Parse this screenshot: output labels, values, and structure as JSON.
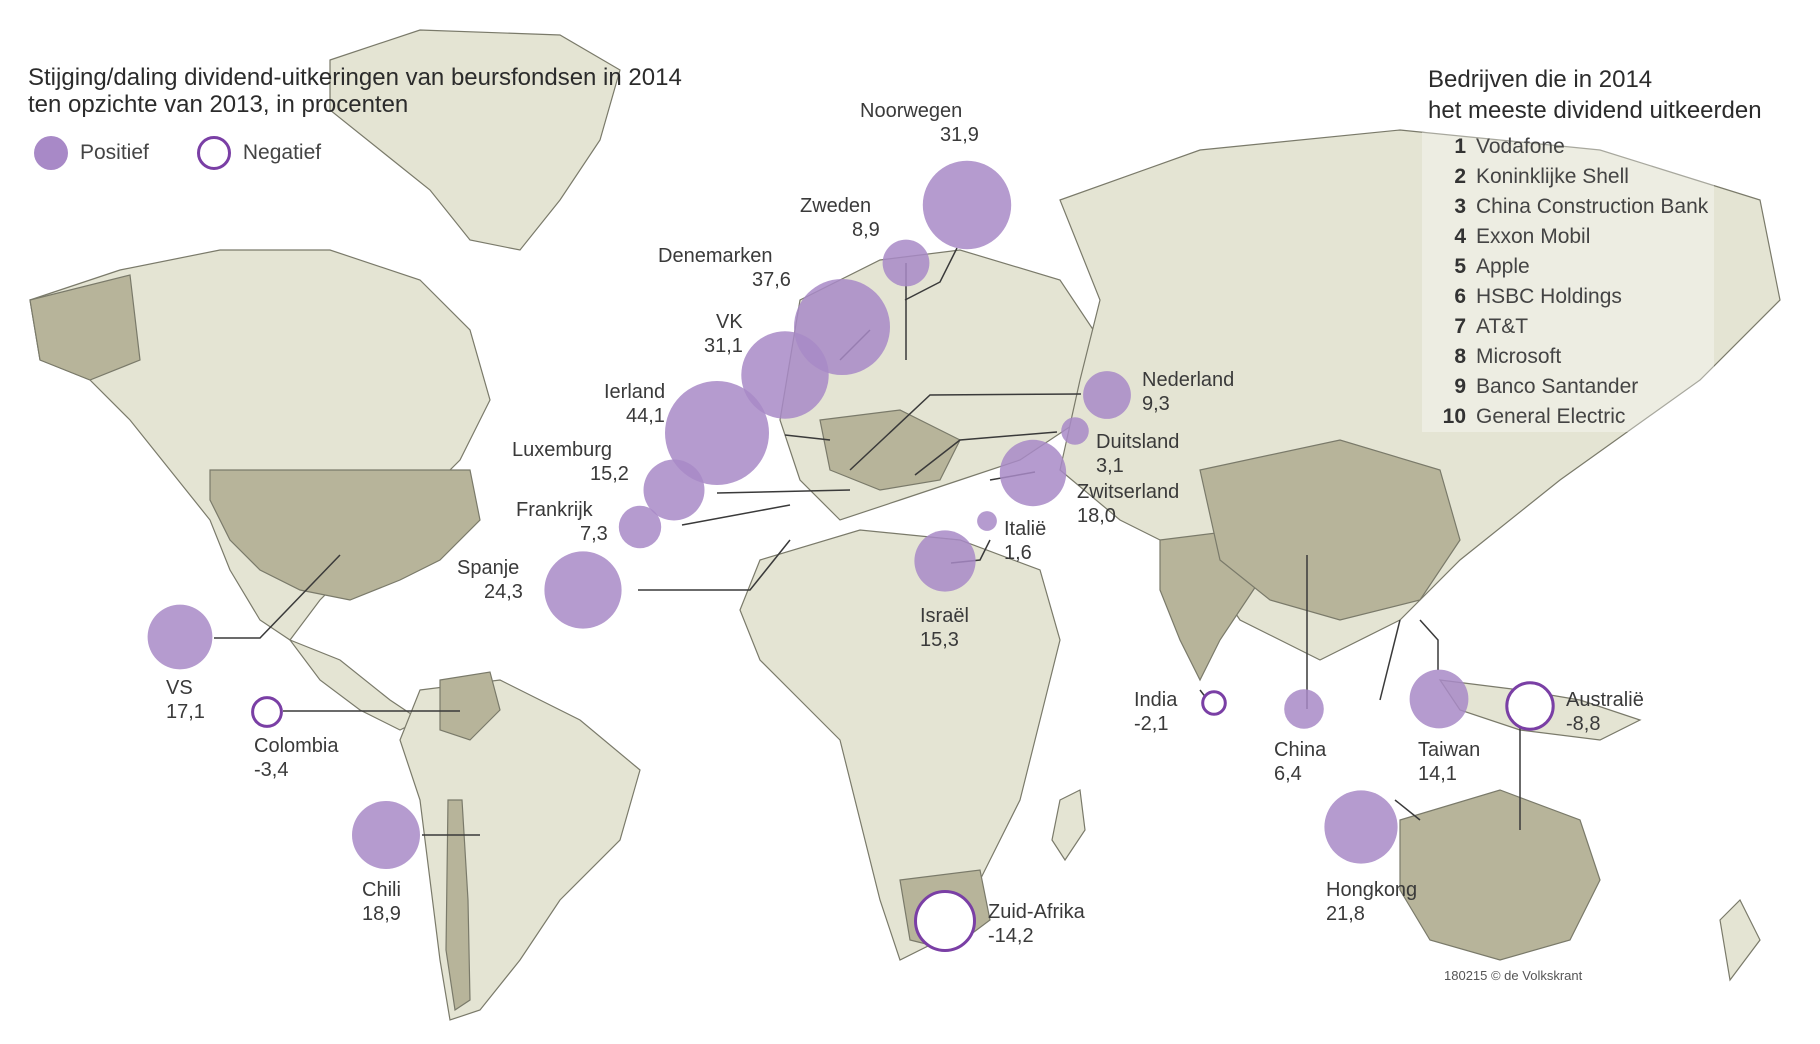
{
  "title_line1": "Stijging/daling dividend-uitkeringen van beursfondsen in 2014",
  "title_line2": "ten opzichte van 2013, in procenten",
  "legend": {
    "positive": "Positief",
    "negative": "Negatief"
  },
  "companies_title_line1": "Bedrijven die in 2014",
  "companies_title_line2": "het meeste dividend uitkeerden",
  "companies": [
    {
      "rank": "1",
      "name": "Vodafone"
    },
    {
      "rank": "2",
      "name": "Koninklijke Shell"
    },
    {
      "rank": "3",
      "name": "China Construction Bank"
    },
    {
      "rank": "4",
      "name": "Exxon Mobil"
    },
    {
      "rank": "5",
      "name": "Apple"
    },
    {
      "rank": "6",
      "name": "HSBC Holdings"
    },
    {
      "rank": "7",
      "name": "AT&T"
    },
    {
      "rank": "8",
      "name": "Microsoft"
    },
    {
      "rank": "9",
      "name": "Banco Santander"
    },
    {
      "rank": "10",
      "name": "General Electric"
    }
  ],
  "credit": "180215 © de Volkskrant",
  "colors": {
    "positive": "#a889c7",
    "negative_stroke": "#7a3fa5",
    "land": "#e4e4d3",
    "land_highlight": "#b7b49a"
  },
  "countries": [
    {
      "name": "Noorwegen",
      "value": "31,9",
      "num": 31.9
    },
    {
      "name": "Zweden",
      "value": "8,9",
      "num": 8.9
    },
    {
      "name": "Denemarken",
      "value": "37,6",
      "num": 37.6
    },
    {
      "name": "VK",
      "value": "31,1",
      "num": 31.1
    },
    {
      "name": "Ierland",
      "value": "44,1",
      "num": 44.1
    },
    {
      "name": "Luxemburg",
      "value": "15,2",
      "num": 15.2
    },
    {
      "name": "Frankrijk",
      "value": "7,3",
      "num": 7.3
    },
    {
      "name": "Spanje",
      "value": "24,3",
      "num": 24.3
    },
    {
      "name": "Nederland",
      "value": "9,3",
      "num": 9.3
    },
    {
      "name": "Duitsland",
      "value": "3,1",
      "num": 3.1
    },
    {
      "name": "Zwitserland",
      "value": "18,0",
      "num": 18.0
    },
    {
      "name": "Italië",
      "value": "1,6",
      "num": 1.6
    },
    {
      "name": "Israël",
      "value": "15,3",
      "num": 15.3
    },
    {
      "name": "VS",
      "value": "17,1",
      "num": 17.1
    },
    {
      "name": "Colombia",
      "value": "-3,4",
      "num": -3.4
    },
    {
      "name": "Chili",
      "value": "18,9",
      "num": 18.9
    },
    {
      "name": "Zuid-Afrika",
      "value": "-14,2",
      "num": -14.2
    },
    {
      "name": "India",
      "value": "-2,1",
      "num": -2.1
    },
    {
      "name": "China",
      "value": "6,4",
      "num": 6.4
    },
    {
      "name": "Taiwan",
      "value": "14,1",
      "num": 14.1
    },
    {
      "name": "Australië",
      "value": "-8,8",
      "num": -8.8
    },
    {
      "name": "Hongkong",
      "value": "21,8",
      "num": 21.8
    }
  ]
}
